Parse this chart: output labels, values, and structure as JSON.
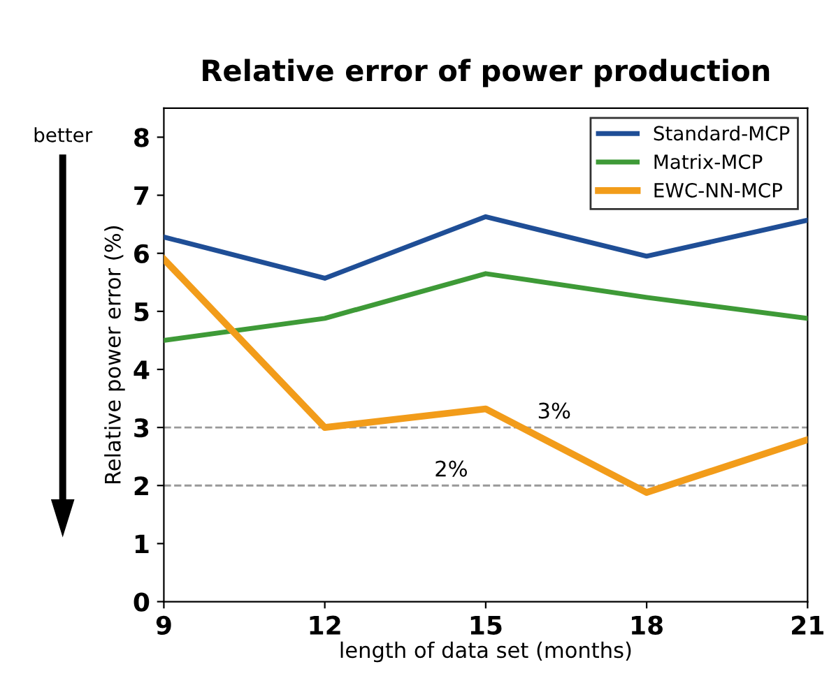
{
  "chart_data": {
    "type": "line",
    "title": "Relative error of power production",
    "xlabel": "length of data set (months)",
    "ylabel": "Relative power error (%)",
    "x": [
      9,
      12,
      15,
      18,
      21
    ],
    "series": [
      {
        "name": "Standard-MCP",
        "color": "#1f4e96",
        "values": [
          6.28,
          5.57,
          6.63,
          5.95,
          6.57
        ]
      },
      {
        "name": "Matrix-MCP",
        "color": "#3e9a37",
        "values": [
          4.5,
          4.88,
          5.65,
          5.24,
          4.88
        ]
      },
      {
        "name": "EWC-NN-MCP",
        "color": "#f29c1a",
        "values": [
          5.9,
          3.0,
          3.32,
          1.88,
          2.79
        ]
      }
    ],
    "xlim": [
      9,
      21
    ],
    "ylim": [
      0,
      8.5
    ],
    "xticks": [
      9,
      12,
      15,
      18,
      21
    ],
    "yticks": [
      0,
      1,
      2,
      3,
      4,
      5,
      6,
      7,
      8
    ],
    "ref_lines": [
      {
        "axis": "y",
        "value": 3,
        "label": "3%",
        "color": "#999999",
        "line_style": "dashed"
      },
      {
        "axis": "y",
        "value": 2,
        "label": "2%",
        "color": "#999999",
        "line_style": "dashed"
      }
    ],
    "annotations": [
      "better"
    ],
    "legend": "top right",
    "grid": false,
    "marker": "none",
    "line_style": "solid"
  }
}
